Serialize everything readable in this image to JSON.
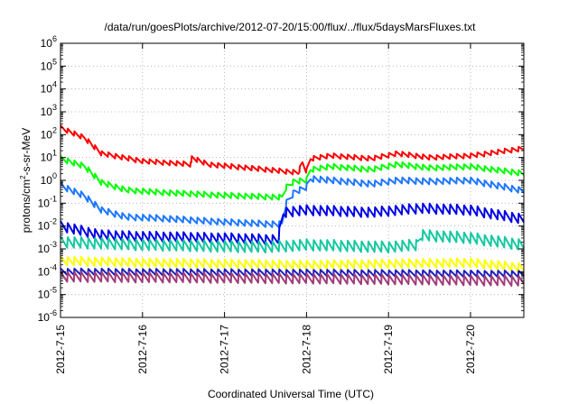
{
  "chart_data": {
    "type": "line",
    "title": "/data/run/goesPlots/archive/2012-07-20/15:00/flux/../flux/5daysMarsFluxes.txt",
    "xlabel": "Coordinated Universal Time (UTC)",
    "ylabel": "protons/cm²-s-sr-MeV",
    "ylabel_parts": {
      "pre": "protons/cm",
      "sup": "2",
      "post": "-s-sr-MeV"
    },
    "yscale": "log",
    "ylim": [
      1e-06,
      1000000.0
    ],
    "xlim": [
      0,
      5.65
    ],
    "x_units": "days since 2012-7-15 00:00 UTC",
    "grid": true,
    "yticks": [
      {
        "exp": "-6",
        "value": 1e-06
      },
      {
        "exp": "-5",
        "value": 1e-05
      },
      {
        "exp": "-4",
        "value": 0.0001
      },
      {
        "exp": "-3",
        "value": 0.001
      },
      {
        "exp": "-2",
        "value": 0.01
      },
      {
        "exp": "-1",
        "value": 0.1
      },
      {
        "exp": "0",
        "value": 1
      },
      {
        "exp": "1",
        "value": 10
      },
      {
        "exp": "2",
        "value": 100
      },
      {
        "exp": "3",
        "value": 1000
      },
      {
        "exp": "4",
        "value": 10000
      },
      {
        "exp": "5",
        "value": 100000
      },
      {
        "exp": "6",
        "value": 1000000
      }
    ],
    "xticks": [
      {
        "label": "2012-7-15",
        "value": 0
      },
      {
        "label": "2012-7-16",
        "value": 1
      },
      {
        "label": "2012-7-17",
        "value": 2
      },
      {
        "label": "2012-7-18",
        "value": 3
      },
      {
        "label": "2012-7-19",
        "value": 4
      },
      {
        "label": "2012-7-20",
        "value": 5
      }
    ],
    "series": [
      {
        "color": "#ff0000",
        "amp": 0.22,
        "points": [
          [
            0,
            200
          ],
          [
            0.3,
            70
          ],
          [
            0.5,
            15
          ],
          [
            1.0,
            7
          ],
          [
            1.6,
            5
          ],
          [
            1.6,
            10
          ],
          [
            1.8,
            5
          ],
          [
            2.5,
            3
          ],
          [
            2.9,
            2.2
          ],
          [
            2.95,
            6
          ],
          [
            3.0,
            2.5
          ],
          [
            3.05,
            9
          ],
          [
            3.3,
            12
          ],
          [
            3.8,
            9
          ],
          [
            4.1,
            15
          ],
          [
            4.5,
            10
          ],
          [
            5.0,
            12
          ],
          [
            5.65,
            25
          ]
        ]
      },
      {
        "color": "#00ff00",
        "amp": 0.25,
        "points": [
          [
            0,
            9
          ],
          [
            0.3,
            4
          ],
          [
            0.5,
            0.8
          ],
          [
            0.8,
            0.38
          ],
          [
            1.2,
            0.3
          ],
          [
            2.0,
            0.22
          ],
          [
            2.7,
            0.18
          ],
          [
            2.75,
            0.5
          ],
          [
            2.85,
            0.9
          ],
          [
            3.0,
            1
          ],
          [
            3.05,
            3
          ],
          [
            3.3,
            4
          ],
          [
            3.8,
            3
          ],
          [
            4.1,
            5
          ],
          [
            4.5,
            3.5
          ],
          [
            5.0,
            4
          ],
          [
            5.65,
            2
          ]
        ]
      },
      {
        "color": "#1e78ff",
        "amp": 0.28,
        "points": [
          [
            0,
            0.6
          ],
          [
            0.3,
            0.2
          ],
          [
            0.5,
            0.05
          ],
          [
            0.8,
            0.025
          ],
          [
            1.2,
            0.022
          ],
          [
            2.0,
            0.015
          ],
          [
            2.6,
            0.012
          ],
          [
            2.7,
            0.012
          ],
          [
            2.75,
            0.1
          ],
          [
            2.85,
            0.3
          ],
          [
            3.0,
            0.5
          ],
          [
            3.05,
            1.2
          ],
          [
            3.3,
            1
          ],
          [
            3.8,
            0.7
          ],
          [
            4.1,
            1
          ],
          [
            4.5,
            0.9
          ],
          [
            5.0,
            1
          ],
          [
            5.65,
            0.35
          ]
        ]
      },
      {
        "color": "#0000e6",
        "amp": 0.45,
        "points": [
          [
            0,
            0.01
          ],
          [
            0.5,
            0.004
          ],
          [
            1.0,
            0.0035
          ],
          [
            2.0,
            0.003
          ],
          [
            2.6,
            0.0025
          ],
          [
            2.65,
            0.0025
          ],
          [
            2.72,
            0.04
          ],
          [
            3.0,
            0.05
          ],
          [
            3.8,
            0.04
          ],
          [
            4.4,
            0.06
          ],
          [
            5.0,
            0.05
          ],
          [
            5.65,
            0.02
          ]
        ]
      },
      {
        "color": "#14c8a0",
        "amp": 0.5,
        "points": [
          [
            0,
            0.002
          ],
          [
            1.0,
            0.0015
          ],
          [
            2.5,
            0.0012
          ],
          [
            3.0,
            0.0015
          ],
          [
            4.0,
            0.0012
          ],
          [
            4.35,
            0.0015
          ],
          [
            4.4,
            0.004
          ],
          [
            5.0,
            0.003
          ],
          [
            5.65,
            0.0015
          ]
        ]
      },
      {
        "color": "#ffff00",
        "amp": 0.4,
        "points": [
          [
            0,
            0.0003
          ],
          [
            1.0,
            0.00025
          ],
          [
            3.0,
            0.0002
          ],
          [
            5.0,
            0.00025
          ],
          [
            5.65,
            0.00015
          ]
        ]
      },
      {
        "color": "#1e1ebe",
        "amp": 0.3,
        "points": [
          [
            0,
            0.0001
          ],
          [
            3.0,
            9e-05
          ],
          [
            5.65,
            8e-05
          ]
        ]
      },
      {
        "color": "#a03c78",
        "amp": 0.45,
        "points": [
          [
            0,
            6e-05
          ],
          [
            3.0,
            5e-05
          ],
          [
            5.65,
            4e-05
          ]
        ]
      }
    ]
  }
}
